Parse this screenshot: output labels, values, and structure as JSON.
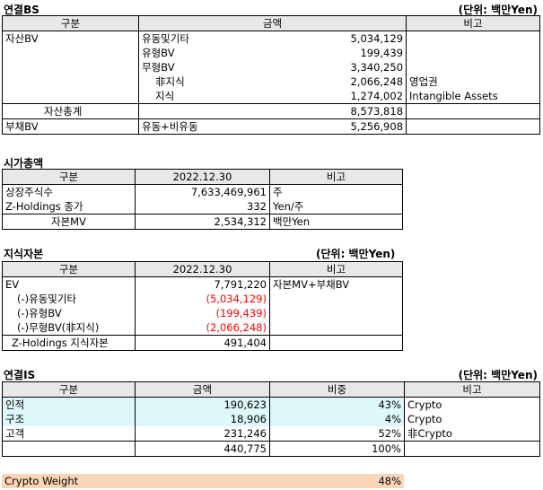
{
  "bs": {
    "title": "연결BS",
    "unit": "(단위: 백만Yen)",
    "headers": [
      "구분",
      "금액",
      "비고"
    ],
    "asset_label": "자산BV",
    "rows": [
      {
        "name": "유동및기타",
        "amount": "5,034,129",
        "note": ""
      },
      {
        "name": "유형BV",
        "amount": "199,439",
        "note": ""
      },
      {
        "name": "무형BV",
        "amount": "3,340,250",
        "note": ""
      },
      {
        "name": "非지식",
        "amount": "2,066,248",
        "note": "영업권"
      },
      {
        "name": "지식",
        "amount": "1,274,002",
        "note": "Intangible Assets"
      }
    ],
    "asset_total_label": "자산총계",
    "asset_total": "8,573,818",
    "liab_label": "부채BV",
    "liab_desc": "유동+비유동",
    "liab_amount": "5,256,908"
  },
  "mcap": {
    "title": "시가총액",
    "headers": [
      "구분",
      "2022.12.30",
      "비고"
    ],
    "rows": [
      {
        "name": "상장주식수",
        "value": "7,633,469,961",
        "note": "주"
      },
      {
        "name": "Z-Holdings 종가",
        "value": "332",
        "note": "Yen/주"
      },
      {
        "name": "자본MV",
        "value": "2,534,312",
        "note": "백만Yen"
      }
    ]
  },
  "ic": {
    "title": "지식자본",
    "unit": "(단위: 백만Yen)",
    "headers": [
      "구분",
      "2022.12.30",
      "비고"
    ],
    "rows": [
      {
        "name": "EV",
        "value": "7,791,220",
        "note": "자본MV+부채BV",
        "red": false
      },
      {
        "name": "(-)유동및기타",
        "value": "(5,034,129)",
        "note": "",
        "red": true
      },
      {
        "name": "(-)유형BV",
        "value": "(199,439)",
        "note": "",
        "red": true
      },
      {
        "name": "(-)무형BV(非지식)",
        "value": "(2,066,248)",
        "note": "",
        "red": true
      }
    ],
    "total_label": "Z-Holdings 지식자본",
    "total_value": "491,404"
  },
  "is": {
    "title": "연결IS",
    "unit": "(단위: 백만Yen)",
    "headers": [
      "구분",
      "금액",
      "비중",
      "비고"
    ],
    "rows": [
      {
        "name": "인적",
        "amount": "190,623",
        "pct": "43%",
        "note": "Crypto"
      },
      {
        "name": "구조",
        "amount": "18,906",
        "pct": "4%",
        "note": "Crypto"
      },
      {
        "name": "고객",
        "amount": "231,246",
        "pct": "52%",
        "note": "非Crypto"
      }
    ],
    "total_amount": "440,775",
    "total_pct": "100%"
  },
  "weight": {
    "label": "Crypto Weight",
    "value": "48%"
  }
}
